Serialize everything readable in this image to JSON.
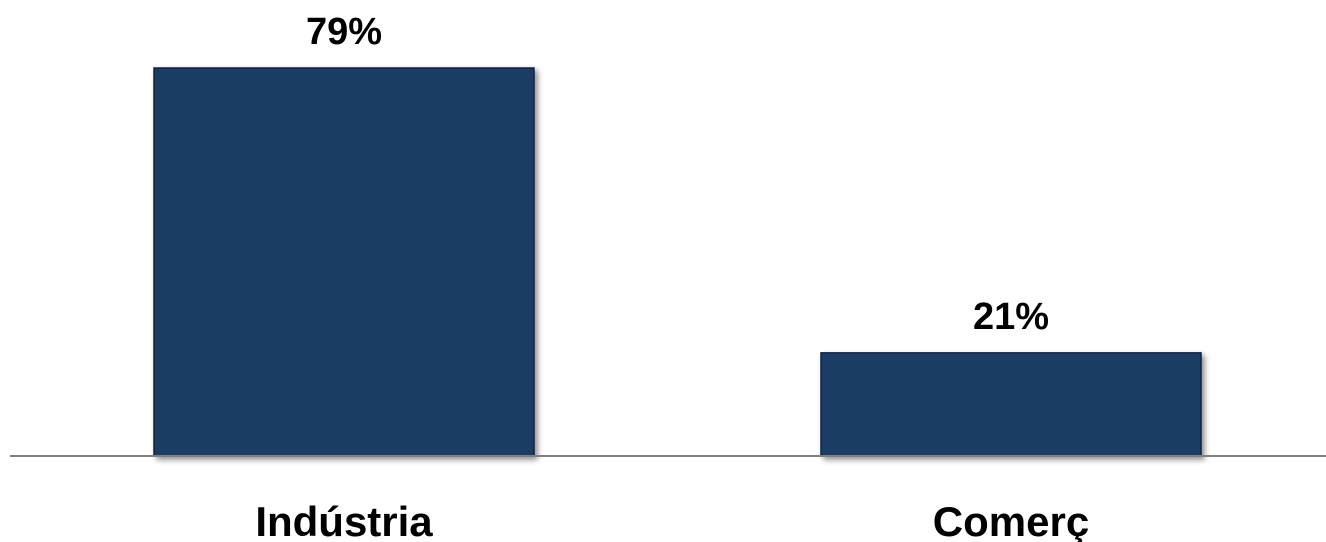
{
  "chart_data": {
    "type": "bar",
    "categories": [
      "Indústria",
      "Comerç"
    ],
    "values": [
      79,
      21
    ],
    "data_labels": [
      "79%",
      "21%"
    ],
    "ylim": [
      0,
      80
    ],
    "grid": false,
    "legend": "none",
    "colors": {
      "bar": "#1f3c64",
      "bar_edge": "#0f2240",
      "axis": "#808080"
    }
  }
}
